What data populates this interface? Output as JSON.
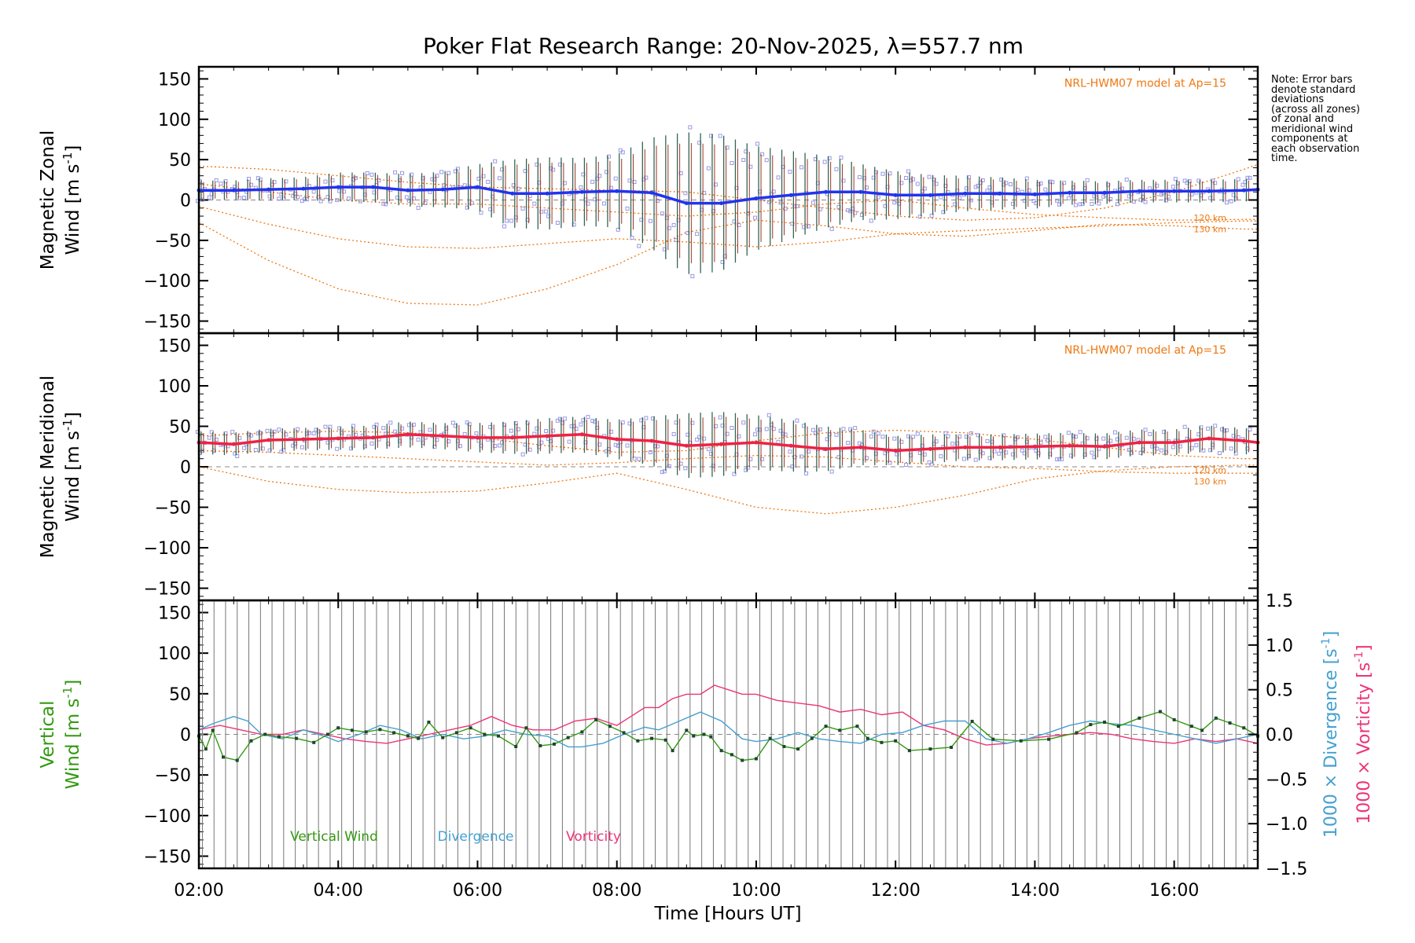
{
  "title": "Poker Flat Research Range: 20-Nov-2025, λ=557.7 nm",
  "note_lines": [
    "Note: Error bars",
    "denote standard",
    "deviations",
    "(across all zones)",
    "of zonal and",
    "meridional wind",
    "components at",
    "each observation",
    "time."
  ],
  "colors": {
    "zonal": "#2233ee",
    "meridional": "#ee2244",
    "model": "#ee7711",
    "vertical": "#339911",
    "divergence": "#44a0d0",
    "vorticity": "#ee3377",
    "scatter": "#9999e6",
    "errorbar_a": "#336655",
    "errorbar_b": "#993322"
  },
  "x_axis": {
    "label": "Time [Hours UT]",
    "range_hours": [
      2.0,
      17.2
    ],
    "ticks": [
      {
        "value": 2,
        "label": "02:00"
      },
      {
        "value": 4,
        "label": "04:00"
      },
      {
        "value": 6,
        "label": "06:00"
      },
      {
        "value": 8,
        "label": "08:00"
      },
      {
        "value": 10,
        "label": "10:00"
      },
      {
        "value": 12,
        "label": "12:00"
      },
      {
        "value": 14,
        "label": "14:00"
      },
      {
        "value": 16,
        "label": "16:00"
      }
    ]
  },
  "chart_data": [
    {
      "type": "line",
      "panel": "zonal",
      "ylabel_line1": "Magnetic Zonal",
      "ylabel_line2": "Wind [m s",
      "ylabel_sup": "-1",
      "ylabel_close": "]",
      "ylim": [
        -165,
        165
      ],
      "yticks": [
        150,
        100,
        50,
        0,
        -50,
        -100,
        -150
      ],
      "model_label": "NRL-HWM07 model at Ap=15",
      "model_height_labels": [
        "120 km",
        "130 km"
      ],
      "series": [
        {
          "name": "Zonal wind",
          "x": [
            2.0,
            2.5,
            3.0,
            3.5,
            4.0,
            4.5,
            5.0,
            5.5,
            6.0,
            6.5,
            7.0,
            7.5,
            8.0,
            8.5,
            9.0,
            9.5,
            10.0,
            10.5,
            11.0,
            11.5,
            12.0,
            12.5,
            13.0,
            13.5,
            14.0,
            14.5,
            15.0,
            15.5,
            16.0,
            16.5,
            17.0,
            17.2
          ],
          "values": [
            12,
            12,
            13,
            14,
            16,
            16,
            12,
            13,
            16,
            8,
            8,
            10,
            11,
            9,
            -4,
            -4,
            2,
            6,
            10,
            10,
            6,
            6,
            8,
            8,
            7,
            9,
            9,
            11,
            11,
            11,
            12,
            13
          ]
        },
        {
          "name": "Zonal error sigma",
          "x": [
            2.0,
            2.5,
            3.0,
            3.5,
            4.0,
            4.5,
            5.0,
            5.5,
            6.0,
            6.5,
            7.0,
            7.5,
            8.0,
            8.5,
            9.0,
            9.5,
            10.0,
            10.5,
            11.0,
            11.5,
            12.0,
            12.5,
            13.0,
            13.5,
            14.0,
            14.5,
            15.0,
            15.5,
            16.0,
            16.5,
            17.0,
            17.2
          ],
          "values": [
            12,
            12,
            14,
            14,
            18,
            18,
            20,
            22,
            28,
            42,
            45,
            42,
            45,
            68,
            88,
            85,
            65,
            55,
            45,
            35,
            30,
            25,
            22,
            20,
            18,
            15,
            14,
            14,
            14,
            14,
            14,
            14
          ]
        },
        {
          "name": "HWM07 zonal 120 km",
          "x": [
            2,
            3,
            4,
            5,
            6,
            7,
            8,
            9,
            10,
            11,
            12,
            13,
            14,
            15,
            16,
            17,
            17.2
          ],
          "values": [
            42,
            38,
            30,
            22,
            16,
            14,
            12,
            10,
            0,
            -10,
            -20,
            -25,
            -22,
            -10,
            10,
            38,
            44
          ]
        },
        {
          "name": "HWM07 zonal 130 km",
          "x": [
            2,
            3,
            4,
            5,
            6,
            7,
            8,
            9,
            10,
            11,
            12,
            13,
            14,
            15,
            16,
            16.5,
            17,
            17.2
          ],
          "values": [
            -28,
            -75,
            -110,
            -128,
            -130,
            -110,
            -80,
            -40,
            -25,
            -32,
            -42,
            -45,
            -38,
            -30,
            -32,
            -34,
            -36,
            -36
          ]
        },
        {
          "name": "HWM07 zonal 140 km",
          "x": [
            2,
            3,
            4,
            5,
            6,
            7,
            8,
            9,
            10,
            11,
            12,
            13,
            14,
            15,
            16,
            17,
            17.2
          ],
          "values": [
            -8,
            -30,
            -48,
            -58,
            -60,
            -54,
            -48,
            -52,
            -58,
            -52,
            -42,
            -38,
            -35,
            -32,
            -28,
            -26,
            -26
          ]
        },
        {
          "name": "HWM07 zonal 150 km",
          "x": [
            2,
            3,
            4,
            5,
            6,
            7,
            8,
            9,
            10,
            11,
            12,
            13,
            14,
            15,
            16,
            17,
            17.2
          ],
          "values": [
            20,
            10,
            0,
            -5,
            -5,
            -10,
            -15,
            -20,
            -15,
            -5,
            0,
            -10,
            -18,
            -22,
            -25,
            -24,
            -24
          ]
        }
      ]
    },
    {
      "type": "line",
      "panel": "meridional",
      "ylabel_line1": "Magnetic Meridional",
      "ylabel_line2": "Wind [m s",
      "ylabel_sup": "-1",
      "ylabel_close": "]",
      "ylim": [
        -165,
        165
      ],
      "yticks": [
        150,
        100,
        50,
        0,
        -50,
        -100,
        -150
      ],
      "model_label": "NRL-HWM07 model at Ap=15",
      "model_height_labels": [
        "120 km",
        "130 km"
      ],
      "series": [
        {
          "name": "Meridional wind",
          "x": [
            2.0,
            2.5,
            3.0,
            3.5,
            4.0,
            4.5,
            5.0,
            5.5,
            6.0,
            6.5,
            7.0,
            7.5,
            8.0,
            8.5,
            9.0,
            9.5,
            10.0,
            10.5,
            11.0,
            11.5,
            12.0,
            12.5,
            13.0,
            13.5,
            14.0,
            14.5,
            15.0,
            15.5,
            16.0,
            16.5,
            17.0,
            17.2
          ],
          "values": [
            30,
            28,
            33,
            34,
            35,
            36,
            40,
            38,
            36,
            36,
            38,
            40,
            34,
            32,
            26,
            28,
            30,
            26,
            22,
            24,
            20,
            22,
            24,
            24,
            25,
            26,
            25,
            30,
            30,
            35,
            32,
            30
          ]
        },
        {
          "name": "Meridional error sigma",
          "x": [
            2.0,
            2.5,
            3.0,
            3.5,
            4.0,
            4.5,
            5.0,
            5.5,
            6.0,
            6.5,
            7.0,
            7.5,
            8.0,
            8.5,
            9.0,
            9.5,
            10.0,
            10.5,
            11.0,
            11.5,
            12.0,
            12.5,
            13.0,
            13.5,
            14.0,
            14.5,
            15.0,
            15.5,
            16.0,
            16.5,
            17.0,
            17.2
          ],
          "values": [
            14,
            14,
            14,
            14,
            14,
            15,
            16,
            16,
            18,
            20,
            22,
            22,
            24,
            30,
            40,
            40,
            34,
            32,
            28,
            22,
            18,
            18,
            16,
            16,
            16,
            16,
            16,
            16,
            16,
            16,
            16,
            16
          ]
        },
        {
          "name": "HWM07 meridional 120 km",
          "x": [
            2,
            3,
            4,
            5,
            6,
            7,
            8,
            9,
            10,
            11,
            12,
            13,
            14,
            15,
            16,
            17,
            17.2
          ],
          "values": [
            38,
            42,
            44,
            42,
            36,
            26,
            18,
            20,
            32,
            42,
            45,
            42,
            34,
            24,
            14,
            10,
            10
          ]
        },
        {
          "name": "HWM07 meridional 130 km",
          "x": [
            2,
            3,
            4,
            5,
            6,
            7,
            8,
            9,
            10,
            11,
            12,
            13,
            14,
            15,
            16,
            17,
            17.2
          ],
          "values": [
            0,
            -18,
            -28,
            -32,
            -30,
            -20,
            -8,
            -28,
            -50,
            -58,
            -50,
            -35,
            -15,
            -5,
            0,
            2,
            2
          ]
        },
        {
          "name": "HWM07 meridional 140 km",
          "x": [
            2,
            3,
            4,
            5,
            6,
            7,
            8,
            9,
            10,
            11,
            12,
            13,
            14,
            15,
            16,
            17,
            17.2
          ],
          "values": [
            20,
            18,
            14,
            10,
            6,
            2,
            5,
            10,
            14,
            12,
            6,
            0,
            -2,
            -6,
            -8,
            -8,
            -8
          ]
        }
      ]
    },
    {
      "type": "line",
      "panel": "vertical",
      "ylabel_line1": "Vertical",
      "ylabel_line2": "Wind [m s",
      "ylabel_sup": "-1",
      "ylabel_close": "]",
      "ylim": [
        -165,
        165
      ],
      "yticks": [
        150,
        100,
        50,
        0,
        -50,
        -100,
        -150
      ],
      "y2_label_div": "1000 × Divergence [s",
      "y2_label_vort": "1000 × Vorticity [s",
      "y2_sup": "-1",
      "y2_close": "]",
      "y2lim": [
        -1.5,
        1.5
      ],
      "y2ticks": [
        1.5,
        1.0,
        0.5,
        0.0,
        -0.5,
        -1.0,
        -1.5
      ],
      "y2ticklabels": [
        "1.5",
        "1.0",
        "0.5",
        "0.0",
        "−0.5",
        "−1.0",
        "−1.5"
      ],
      "legend": [
        "Vertical Wind",
        "Divergence",
        "Vorticity"
      ],
      "series": [
        {
          "name": "Vertical Wind",
          "x": [
            2.0,
            2.1,
            2.2,
            2.35,
            2.55,
            2.75,
            2.95,
            3.15,
            3.4,
            3.65,
            3.85,
            4.0,
            4.2,
            4.4,
            4.6,
            4.8,
            5.0,
            5.15,
            5.3,
            5.5,
            5.7,
            5.9,
            6.1,
            6.3,
            6.55,
            6.7,
            6.9,
            7.1,
            7.3,
            7.5,
            7.7,
            7.9,
            8.1,
            8.3,
            8.5,
            8.7,
            8.8,
            9.0,
            9.1,
            9.25,
            9.35,
            9.5,
            9.65,
            9.8,
            10.0,
            10.2,
            10.4,
            10.6,
            10.8,
            11.0,
            11.2,
            11.45,
            11.6,
            11.8,
            12.0,
            12.2,
            12.5,
            12.8,
            13.1,
            13.4,
            13.8,
            14.2,
            14.6,
            14.8,
            15.0,
            15.2,
            15.5,
            15.8,
            16.0,
            16.25,
            16.4,
            16.6,
            16.8,
            17.0,
            17.2
          ],
          "values": [
            -2,
            -18,
            5,
            -28,
            -32,
            -8,
            0,
            -3,
            -5,
            -10,
            0,
            8,
            5,
            3,
            6,
            2,
            -2,
            -5,
            15,
            -4,
            2,
            8,
            0,
            -2,
            -15,
            8,
            -14,
            -12,
            -4,
            3,
            18,
            10,
            2,
            -8,
            -5,
            -7,
            -20,
            5,
            -2,
            0,
            -3,
            -20,
            -25,
            -32,
            -30,
            -5,
            -15,
            -18,
            -5,
            10,
            5,
            10,
            -5,
            -10,
            -8,
            -20,
            -18,
            -16,
            16,
            -6,
            -8,
            -6,
            2,
            12,
            15,
            10,
            20,
            28,
            18,
            10,
            5,
            20,
            14,
            8,
            -2
          ]
        },
        {
          "name": "Divergence",
          "x": [
            2.0,
            2.2,
            2.5,
            2.7,
            2.9,
            3.2,
            3.5,
            3.8,
            4.0,
            4.3,
            4.6,
            4.9,
            5.2,
            5.5,
            5.8,
            6.1,
            6.4,
            6.7,
            7.0,
            7.3,
            7.5,
            7.8,
            8.1,
            8.4,
            8.6,
            8.9,
            9.2,
            9.5,
            9.8,
            10.0,
            10.3,
            10.6,
            10.9,
            11.2,
            11.5,
            11.8,
            12.1,
            12.4,
            12.7,
            13.0,
            13.3,
            13.6,
            13.9,
            14.2,
            14.5,
            14.8,
            15.1,
            15.4,
            15.7,
            16.0,
            16.3,
            16.6,
            16.9,
            17.2
          ],
          "values": [
            0.05,
            0.12,
            0.2,
            0.15,
            0.0,
            -0.05,
            0.05,
            -0.02,
            -0.08,
            0.0,
            0.1,
            0.05,
            -0.05,
            0.0,
            -0.05,
            -0.02,
            0.05,
            0.0,
            -0.02,
            -0.14,
            -0.14,
            -0.1,
            0.0,
            0.08,
            0.05,
            0.15,
            0.25,
            0.15,
            -0.05,
            -0.08,
            -0.05,
            0.02,
            -0.05,
            -0.08,
            -0.1,
            0.0,
            0.02,
            0.1,
            0.15,
            0.15,
            -0.05,
            -0.1,
            -0.05,
            0.02,
            0.1,
            0.15,
            0.12,
            0.1,
            0.05,
            0.0,
            -0.05,
            -0.1,
            -0.05,
            0.0
          ]
        },
        {
          "name": "Vorticity",
          "x": [
            2.0,
            2.3,
            2.6,
            2.9,
            3.2,
            3.5,
            3.8,
            4.1,
            4.4,
            4.7,
            5.0,
            5.3,
            5.6,
            5.9,
            6.2,
            6.5,
            6.8,
            7.1,
            7.4,
            7.7,
            8.0,
            8.2,
            8.4,
            8.6,
            8.8,
            9.0,
            9.2,
            9.4,
            9.6,
            9.8,
            10.0,
            10.3,
            10.6,
            10.9,
            11.2,
            11.5,
            11.8,
            12.1,
            12.4,
            12.7,
            13.0,
            13.3,
            13.6,
            13.9,
            14.2,
            14.5,
            14.8,
            15.1,
            15.4,
            15.7,
            16.0,
            16.3,
            16.6,
            16.9,
            17.2
          ],
          "values": [
            0.05,
            0.1,
            0.05,
            0.0,
            0.0,
            0.05,
            0.0,
            -0.05,
            -0.08,
            -0.1,
            -0.05,
            0.0,
            0.05,
            0.1,
            0.2,
            0.1,
            0.05,
            0.05,
            0.15,
            0.18,
            0.1,
            0.2,
            0.3,
            0.3,
            0.4,
            0.45,
            0.45,
            0.55,
            0.5,
            0.45,
            0.45,
            0.38,
            0.35,
            0.32,
            0.25,
            0.28,
            0.22,
            0.25,
            0.1,
            0.05,
            -0.05,
            -0.12,
            -0.1,
            -0.05,
            -0.02,
            0.0,
            0.02,
            0.0,
            -0.05,
            -0.08,
            -0.1,
            -0.05,
            -0.08,
            -0.05,
            -0.1
          ]
        }
      ]
    }
  ]
}
